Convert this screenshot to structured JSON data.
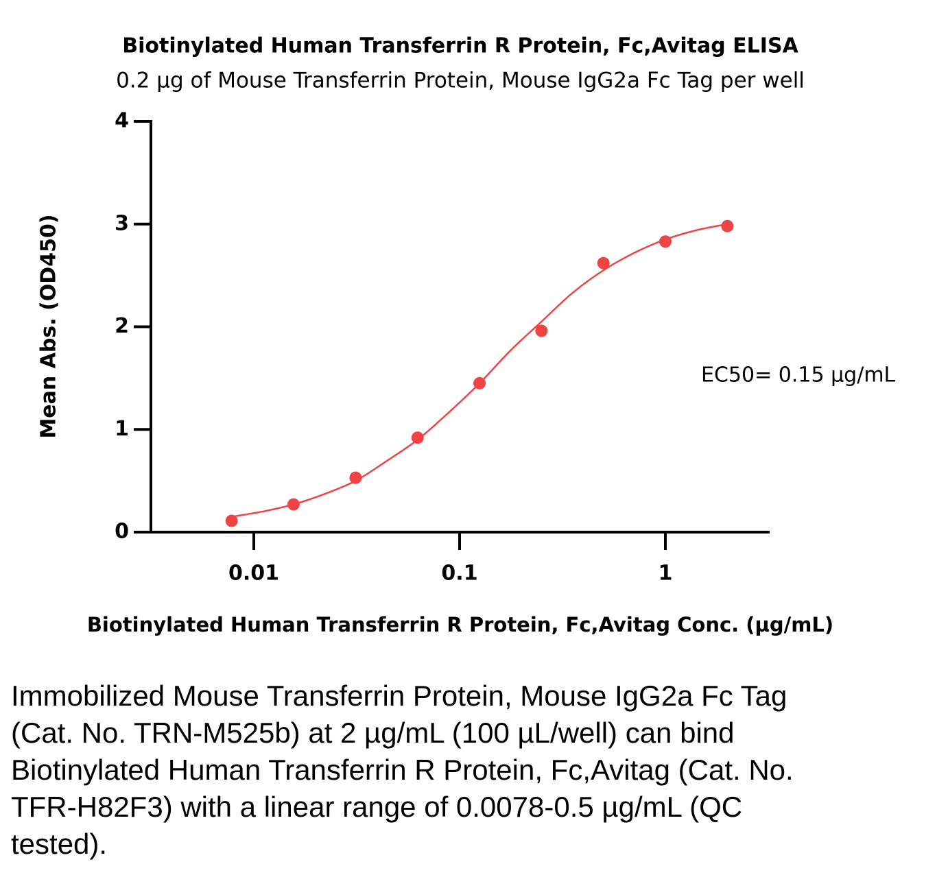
{
  "chart_data": {
    "type": "scatter",
    "title": "Biotinylated Human Transferrin R Protein, Fc,Avitag ELISA",
    "subtitle": "0.2 µg of Mouse Transferrin Protein, Mouse IgG2a Fc Tag per well",
    "x_label": "Biotinylated Human Transferrin R Protein, Fc,Avitag Conc. (µg/mL)",
    "y_label": "Mean Abs. (OD450)",
    "annotation": "EC50=  0.15 µg/mL",
    "log_x": true,
    "xlim": [
      0.003162,
      3.162
    ],
    "xticks": [
      0.01,
      0.1,
      1
    ],
    "ylim": [
      0,
      4
    ],
    "yticks": [
      0,
      1,
      2,
      3,
      4
    ],
    "series": [
      {
        "type": "scatter",
        "color": "#ef4444",
        "x": [
          0.0078,
          0.0156,
          0.03125,
          0.0625,
          0.125,
          0.25,
          0.5,
          1,
          2
        ],
        "values": [
          0.11,
          0.27,
          0.53,
          0.92,
          1.45,
          1.96,
          2.62,
          2.83,
          2.98
        ]
      },
      {
        "type": "line",
        "color": "#ef4444",
        "x": [
          0.0078,
          0.011,
          0.0156,
          0.022,
          0.03125,
          0.044,
          0.0625,
          0.088,
          0.125,
          0.177,
          0.25,
          0.354,
          0.5,
          0.707,
          1,
          1.414,
          2
        ],
        "values": [
          0.15,
          0.2,
          0.27,
          0.37,
          0.5,
          0.69,
          0.9,
          1.16,
          1.45,
          1.77,
          2.05,
          2.33,
          2.55,
          2.72,
          2.85,
          2.94,
          3.0
        ]
      }
    ]
  },
  "caption": "Immobilized Mouse Transferrin Protein, Mouse IgG2a Fc Tag (Cat. No. TRN-M525b) at 2 µg/mL (100 µL/well) can bind Biotinylated Human Transferrin R Protein, Fc,Avitag (Cat. No. TFR-H82F3) with a linear range of 0.0078-0.5 µg/mL (QC tested)."
}
